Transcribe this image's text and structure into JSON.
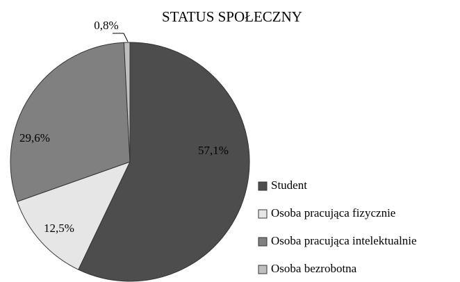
{
  "chart_data": {
    "type": "pie",
    "title": "STATUS SPOŁECZNY",
    "categories": [
      "Student",
      "Osoba pracująca fizycznie",
      "Osoba pracująca intelektualnie",
      "Osoba bezrobotna"
    ],
    "values": [
      57.1,
      12.5,
      29.6,
      0.8
    ],
    "value_labels": [
      "57,1%",
      "12,5%",
      "29,6%",
      "0,8%"
    ],
    "colors": [
      "#4d4d4d",
      "#e6e6e6",
      "#808080",
      "#bfbfbf"
    ],
    "legend": "right"
  }
}
